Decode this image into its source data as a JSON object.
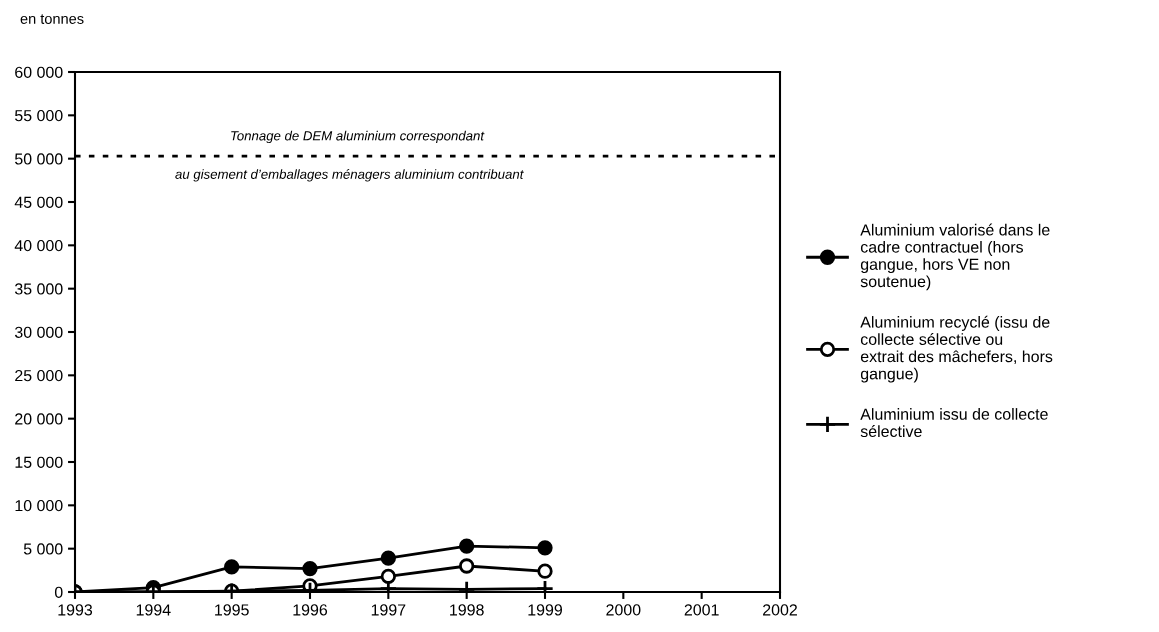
{
  "chart_data": {
    "type": "line",
    "ylabel": "en tonnes",
    "x": [
      1993,
      1994,
      1995,
      1996,
      1997,
      1998,
      1999
    ],
    "xlim": [
      1993,
      2002
    ],
    "xticks": [
      1993,
      1994,
      1995,
      1996,
      1997,
      1998,
      1999,
      2000,
      2001,
      2002
    ],
    "ylim": [
      0,
      60000
    ],
    "yticks": [
      {
        "value": 0,
        "label": "0"
      },
      {
        "value": 5000,
        "label": "5 000"
      },
      {
        "value": 10000,
        "label": "10 000"
      },
      {
        "value": 15000,
        "label": "15 000"
      },
      {
        "value": 20000,
        "label": "20 000"
      },
      {
        "value": 25000,
        "label": "25 000"
      },
      {
        "value": 30000,
        "label": "30 000"
      },
      {
        "value": 35000,
        "label": "35 000"
      },
      {
        "value": 40000,
        "label": "40 000"
      },
      {
        "value": 45000,
        "label": "45 000"
      },
      {
        "value": 50000,
        "label": "50 000"
      },
      {
        "value": 55000,
        "label": "55 000"
      },
      {
        "value": 60000,
        "label": "60 000"
      }
    ],
    "series": [
      {
        "name": "Aluminium valorisé dans le cadre contractuel (hors gangue, hors VE non soutenue)",
        "color": "#000000",
        "marker": "circle",
        "values": [
          0,
          500,
          2900,
          2700,
          3900,
          5300,
          5100
        ]
      },
      {
        "name": "Aluminium recyclé (issu de collecte sélective ou extrait des mâchefers, hors gangue)",
        "color": "#000000",
        "marker": "circle_open",
        "values": [
          0,
          0,
          100,
          700,
          1800,
          3000,
          2400
        ]
      },
      {
        "name": "Aluminium issu de collecte sélective",
        "color": "#000000",
        "marker": "cross",
        "values": [
          0,
          0,
          100,
          200,
          400,
          300,
          400
        ]
      }
    ],
    "ref_lines": [
      {
        "axis": "y",
        "value": 50300,
        "color": "#000000",
        "line_style": "dotted",
        "label": "Tonnage de DEM aluminium correspondant"
      }
    ],
    "annotations": [
      {
        "text": "au gisement d’emballages ménagers aluminium contribuant",
        "x": 1996.5,
        "y": 50300
      }
    ],
    "legend": "right",
    "grid": false
  }
}
